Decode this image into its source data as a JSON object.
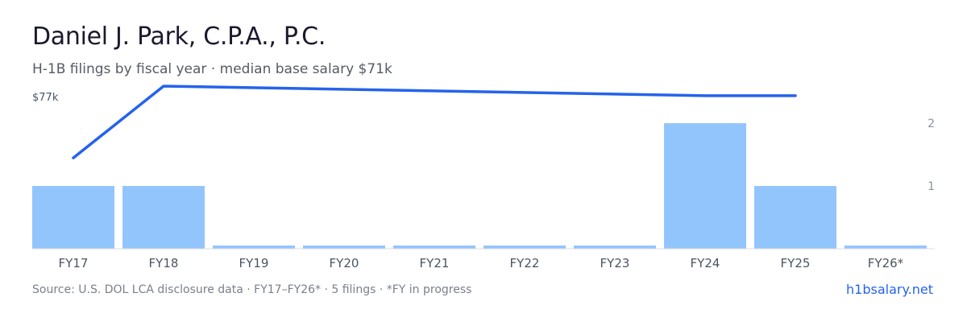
{
  "header": {
    "title": "Daniel J. Park, C.P.A., P.C.",
    "subtitle": "H-1B filings by fiscal year · median base salary $71k"
  },
  "footer": {
    "source": "Source: U.S. DOL LCA disclosure data · FY17–FY26* · 5 filings · *FY in progress",
    "brand": "h1bsalary.net"
  },
  "colors": {
    "bar": "#93c5fd",
    "line": "#2563eb",
    "axis": "#d9dde3",
    "tick_text": "#4b5563",
    "right_tick_text": "#8b939e"
  },
  "chart_data": {
    "type": "bar",
    "categories": [
      "FY17",
      "FY18",
      "FY19",
      "FY20",
      "FY21",
      "FY22",
      "FY23",
      "FY24",
      "FY25",
      "FY26*"
    ],
    "series": [
      {
        "type": "bar",
        "axis": "right",
        "values": [
          1,
          1,
          0,
          0,
          0,
          0,
          0,
          2,
          1,
          0
        ]
      },
      {
        "type": "line",
        "axis": "left",
        "values": [
          74,
          77,
          null,
          null,
          null,
          null,
          null,
          76.6,
          76.6,
          null
        ]
      }
    ],
    "y_right": {
      "ticks": [
        1,
        2
      ],
      "ylim": [
        0,
        2.5
      ]
    },
    "y_left": {
      "tick_labels": [
        "$77k"
      ],
      "tick_values": [
        77
      ],
      "ylim": [
        70.2,
        77
      ]
    },
    "grid": false,
    "legend": "none"
  }
}
